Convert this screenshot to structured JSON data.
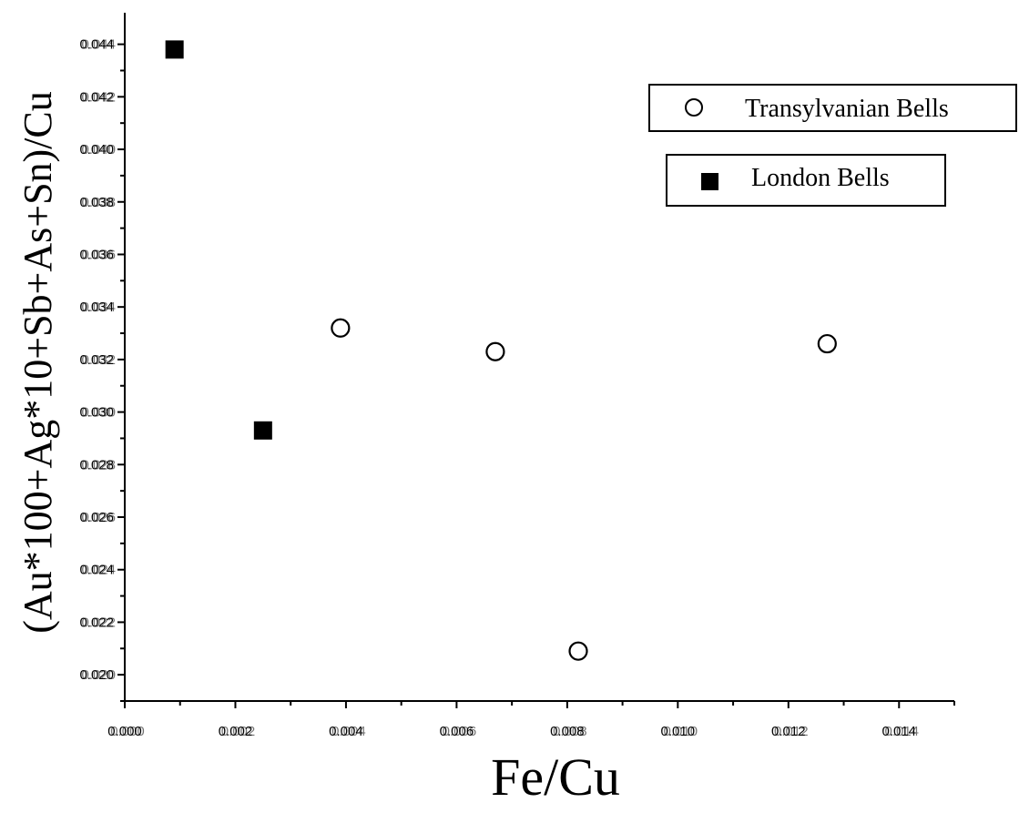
{
  "chart_data": {
    "type": "scatter",
    "xlabel": "Fe/Cu",
    "ylabel": "(Au*100+Ag*10+Sb+As+Sn)/Cu",
    "xlim": [
      0,
      0.015
    ],
    "ylim": [
      0.019,
      0.0452
    ],
    "x_ticks": [
      "0.000",
      "0.002",
      "0.004",
      "0.006",
      "0.008",
      "0.010",
      "0.012",
      "0.014"
    ],
    "x_tick_values": [
      0.0,
      0.002,
      0.004,
      0.006,
      0.008,
      0.01,
      0.012,
      0.014
    ],
    "y_ticks": [
      "0.020",
      "0.022",
      "0.024",
      "0.026",
      "0.028",
      "0.030",
      "0.032",
      "0.034",
      "0.036",
      "0.038",
      "0.040",
      "0.042",
      "0.044"
    ],
    "y_tick_values": [
      0.02,
      0.022,
      0.024,
      0.026,
      0.028,
      0.03,
      0.032,
      0.034,
      0.036,
      0.038,
      0.04,
      0.042,
      0.044
    ],
    "series": [
      {
        "name": "Transylvanian Bells",
        "marker": "open-circle",
        "color": "#000000",
        "points": [
          {
            "x": 0.0039,
            "y": 0.0332
          },
          {
            "x": 0.0067,
            "y": 0.0323
          },
          {
            "x": 0.0082,
            "y": 0.0209
          },
          {
            "x": 0.0127,
            "y": 0.0326
          }
        ]
      },
      {
        "name": "London Bells",
        "marker": "filled-square",
        "color": "#000000",
        "points": [
          {
            "x": 0.0009,
            "y": 0.0438
          },
          {
            "x": 0.0025,
            "y": 0.0293
          }
        ]
      }
    ],
    "legend": "top-right, one boxed entry per series",
    "grid": false
  }
}
